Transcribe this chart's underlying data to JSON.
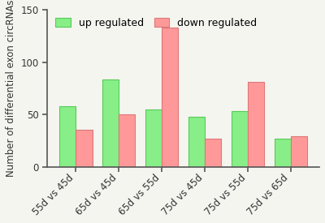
{
  "categories": [
    "55d vs 45d",
    "65d vs 45d",
    "65d vs 55d",
    "75d vs 45d",
    "75d vs 55d",
    "75d vs 65d"
  ],
  "up_regulated": [
    58,
    83,
    55,
    48,
    53,
    27
  ],
  "down_regulated": [
    35,
    50,
    133,
    27,
    81,
    29
  ],
  "up_color": "#88ee88",
  "down_color": "#ff9999",
  "up_edge_color": "#55cc55",
  "down_edge_color": "#dd7777",
  "ylabel": "Number of differential exon circRNAs",
  "ylim": [
    0,
    150
  ],
  "yticks": [
    0,
    50,
    100,
    150
  ],
  "legend_up": "up regulated",
  "legend_down": "down regulated",
  "bar_width": 0.38,
  "tick_fontsize": 8.5,
  "label_fontsize": 8.5,
  "legend_fontsize": 9,
  "bg_color": "#f5f5f0"
}
